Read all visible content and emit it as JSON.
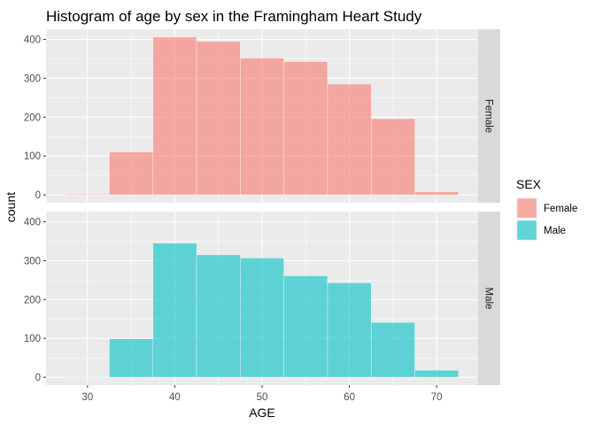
{
  "chart_data": {
    "type": "bar",
    "title": "Histogram of age by sex in the Framingham Heart Study",
    "xlabel": "AGE",
    "ylabel": "count",
    "bins": [
      {
        "from": 27.5,
        "to": 32.5
      },
      {
        "from": 32.5,
        "to": 37.5
      },
      {
        "from": 37.5,
        "to": 42.5
      },
      {
        "from": 42.5,
        "to": 47.5
      },
      {
        "from": 47.5,
        "to": 52.5
      },
      {
        "from": 52.5,
        "to": 57.5
      },
      {
        "from": 57.5,
        "to": 62.5
      },
      {
        "from": 62.5,
        "to": 67.5
      },
      {
        "from": 67.5,
        "to": 72.5
      }
    ],
    "series": [
      {
        "name": "Female",
        "facet": "Female",
        "color": "#F8766D",
        "values": [
          2,
          110,
          406,
          395,
          352,
          343,
          285,
          196,
          8
        ]
      },
      {
        "name": "Male",
        "facet": "Male",
        "color": "#00BFC4",
        "values": [
          1,
          99,
          345,
          315,
          307,
          261,
          243,
          141,
          18
        ]
      }
    ],
    "xlim": [
      25.25,
      74.75
    ],
    "ylim": [
      -20.3,
      426.3
    ],
    "x_ticks": [
      30,
      40,
      50,
      60,
      70
    ],
    "y_ticks": [
      0,
      100,
      200,
      300,
      400
    ],
    "facet_labels": [
      "Female",
      "Male"
    ],
    "legend": {
      "title": "SEX",
      "position": "right",
      "entries": [
        "Female",
        "Male"
      ]
    },
    "grid": true
  }
}
